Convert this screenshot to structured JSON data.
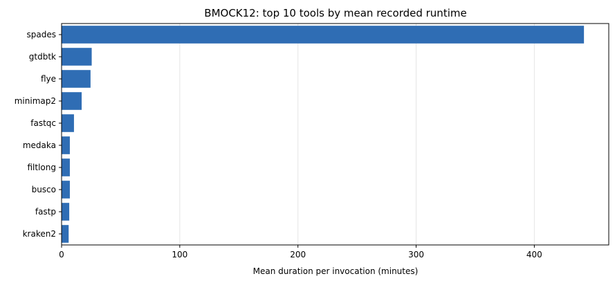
{
  "chart_data": {
    "type": "bar",
    "orientation": "horizontal",
    "title": "BMOCK12: top 10 tools by mean recorded runtime",
    "xlabel": "Mean duration per invocation (minutes)",
    "ylabel": "",
    "categories": [
      "spades",
      "gtdbtk",
      "flye",
      "minimap2",
      "fastqc",
      "medaka",
      "filtlong",
      "busco",
      "fastp",
      "kraken2"
    ],
    "values": [
      442,
      25.5,
      24.5,
      17,
      10.5,
      7,
      7,
      7,
      6.5,
      6
    ],
    "xlim": [
      0,
      463
    ],
    "xticks": [
      0,
      100,
      200,
      300,
      400
    ],
    "grid": "vertical",
    "bar_color": "#2f6db4"
  }
}
